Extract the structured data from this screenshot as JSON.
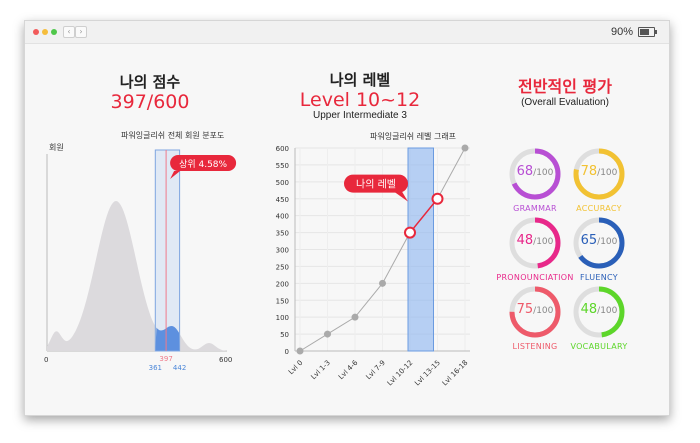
{
  "window": {
    "zoom": "90%"
  },
  "score": {
    "title": "나의 점수",
    "value": "397/600"
  },
  "level": {
    "title": "나의 레벨",
    "value": "Level 10~12",
    "subtitle": "Upper Intermediate 3"
  },
  "overall": {
    "title": "전반적인 평가",
    "subtitle": "(Overall Evaluation)"
  },
  "chart_data": [
    {
      "type": "area",
      "title": "파워잉글리쉬 전체 회원 분포도",
      "ylabel": "회원",
      "xlim": [
        0,
        600
      ],
      "x_ticks": [
        "0",
        "600"
      ],
      "markers": [
        {
          "label": "397",
          "x": 397,
          "color": "#f07a8a"
        },
        {
          "label": "361",
          "x": 361,
          "color": "#4a86d8"
        },
        {
          "label": "442",
          "x": 442,
          "color": "#4a86d8"
        }
      ],
      "callout": "상위 4.58%",
      "highlight_range": [
        361,
        442
      ]
    },
    {
      "type": "line",
      "title": "파워잉글리쉬 레벨 그래프",
      "categories": [
        "Lvl 0",
        "Lvl 1-3",
        "Lvl 4-6",
        "Lvl 7-9",
        "Lvl 10-12",
        "Lvl 13-15",
        "Lvl 16-18"
      ],
      "values": [
        0,
        50,
        100,
        200,
        350,
        450,
        600
      ],
      "ylim": [
        0,
        600
      ],
      "y_ticks": [
        "0",
        "50",
        "100",
        "150",
        "200",
        "250",
        "300",
        "350",
        "400",
        "450",
        "500",
        "550",
        "600"
      ],
      "highlight_category": "Lvl 10-12",
      "callout": "나의 레벨",
      "grid": true
    }
  ],
  "evaluation": [
    {
      "name": "GRAMMAR",
      "value": "68",
      "total": "/100",
      "fraction": 0.68,
      "color": "#b84fd4"
    },
    {
      "name": "ACCURACY",
      "value": "78",
      "total": "/100",
      "fraction": 0.78,
      "color": "#f2c233"
    },
    {
      "name": "PRONOUNCIATION",
      "value": "48",
      "total": "/100",
      "fraction": 0.48,
      "color": "#e8288a"
    },
    {
      "name": "FLUENCY",
      "value": "65",
      "total": "/100",
      "fraction": 0.65,
      "color": "#2a5fb8"
    },
    {
      "name": "LISTENING",
      "value": "75",
      "total": "/100",
      "fraction": 0.75,
      "color": "#ee5a6a"
    },
    {
      "name": "VOCABULARY",
      "value": "48",
      "total": "/100",
      "fraction": 0.48,
      "color": "#5dd62a"
    }
  ]
}
